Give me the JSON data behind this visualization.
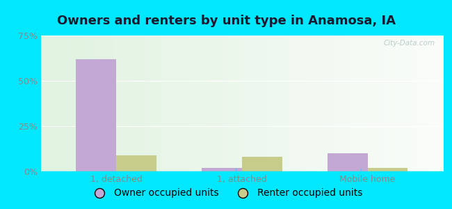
{
  "title": "Owners and renters by unit type in Anamosa, IA",
  "categories": [
    "1, detached",
    "1, attached",
    "Mobile home"
  ],
  "owner_values": [
    62,
    2,
    10
  ],
  "renter_values": [
    9,
    8,
    2
  ],
  "owner_color": "#c4a8d4",
  "renter_color": "#c8cc8a",
  "ylim": [
    0,
    75
  ],
  "yticks": [
    0,
    25,
    50,
    75
  ],
  "yticklabels": [
    "0%",
    "25%",
    "50%",
    "75%"
  ],
  "bar_width": 0.32,
  "outer_bg": "#00e8ff",
  "title_fontsize": 13,
  "tick_fontsize": 9,
  "legend_fontsize": 10,
  "watermark": "City-Data.com",
  "tick_color": "#888888",
  "title_color": "#1a1a2e"
}
